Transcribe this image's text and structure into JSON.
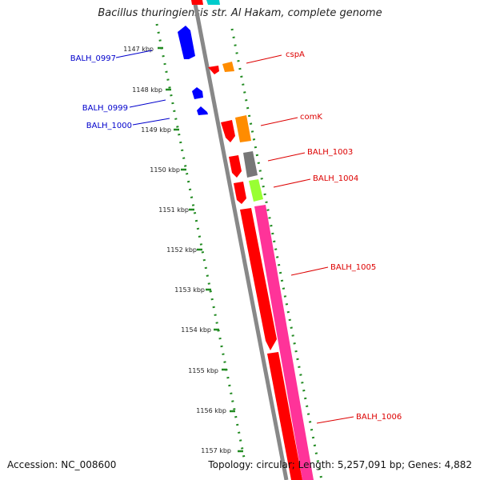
{
  "header": {
    "title": "Bacillus thuringiensis str. Al Hakam, complete genome"
  },
  "footer": {
    "accession": "Accession: NC_008600",
    "summary": "Topology: circular; Length: 5,257,091 bp; Genes: 4,882"
  },
  "ruler": {
    "ticks": [
      {
        "label": "1147 kbp"
      },
      {
        "label": "1148 kbp"
      },
      {
        "label": "1149 kbp"
      },
      {
        "label": "1150 kbp"
      },
      {
        "label": "1151 kbp"
      },
      {
        "label": "1152 kbp"
      },
      {
        "label": "1153 kbp"
      },
      {
        "label": "1154 kbp"
      },
      {
        "label": "1155 kbp"
      },
      {
        "label": "1156 kbp"
      },
      {
        "label": "1157 kbp"
      }
    ]
  },
  "genes": [
    {
      "label": "BALH_0997",
      "color": "#0000cc"
    },
    {
      "label": "BALH_0999",
      "color": "#0000cc"
    },
    {
      "label": "BALH_1000",
      "color": "#0000cc"
    },
    {
      "label": "cspA",
      "color": "#dd0000"
    },
    {
      "label": "comK",
      "color": "#dd0000"
    },
    {
      "label": "BALH_1003",
      "color": "#dd0000"
    },
    {
      "label": "BALH_1004",
      "color": "#dd0000"
    },
    {
      "label": "BALH_1005",
      "color": "#dd0000"
    },
    {
      "label": "BALH_1006",
      "color": "#dd0000"
    }
  ],
  "colors": {
    "cds_reverse": "#0000ff",
    "cds_forward": "#ff0000",
    "orange": "#ff8c00",
    "gray": "#777777",
    "lime": "#99ff33",
    "magenta": "#ff3399",
    "cyan": "#00cccc",
    "backbone": "#888888",
    "tick_green": "#228b22"
  }
}
